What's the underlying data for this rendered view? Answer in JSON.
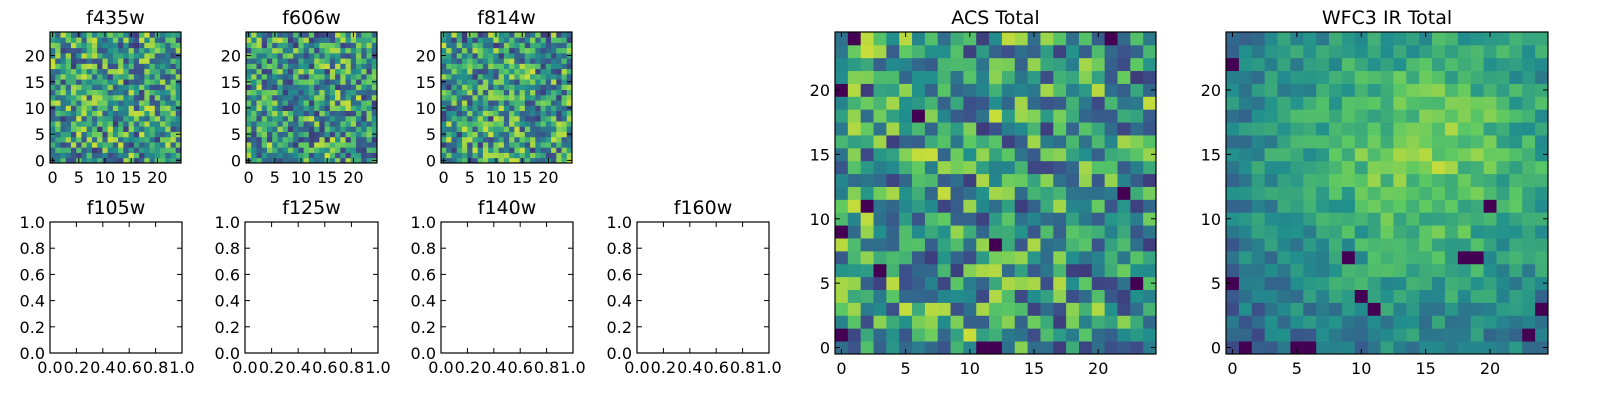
{
  "figure": {
    "colormap": "viridis",
    "colors": [
      "#440154",
      "#3b528b",
      "#21908d",
      "#5dc963",
      "#fde725"
    ],
    "axis_color": "#000000"
  },
  "chart_data": [
    {
      "type": "heatmap",
      "title": "f435w",
      "rows": 25,
      "cols": 25,
      "xlim": [
        -0.5,
        24.5
      ],
      "ylim": [
        -0.5,
        24.5
      ],
      "xticks": [
        0,
        5,
        10,
        15,
        20
      ],
      "yticks": [
        0,
        5,
        10,
        15,
        20
      ],
      "values_note": "random per-pixel noise",
      "seed": 11,
      "mode": "noise"
    },
    {
      "type": "heatmap",
      "title": "f606w",
      "rows": 25,
      "cols": 25,
      "xlim": [
        -0.5,
        24.5
      ],
      "ylim": [
        -0.5,
        24.5
      ],
      "xticks": [
        0,
        5,
        10,
        15,
        20
      ],
      "yticks": [
        0,
        5,
        10,
        15,
        20
      ],
      "seed": 23,
      "mode": "noise"
    },
    {
      "type": "heatmap",
      "title": "f814w",
      "rows": 25,
      "cols": 25,
      "xlim": [
        -0.5,
        24.5
      ],
      "ylim": [
        -0.5,
        24.5
      ],
      "xticks": [
        0,
        5,
        10,
        15,
        20
      ],
      "yticks": [
        0,
        5,
        10,
        15,
        20
      ],
      "seed": 37,
      "mode": "noise"
    },
    {
      "type": "scatter",
      "title": "f105w",
      "xlim": [
        0.0,
        1.0
      ],
      "ylim": [
        0.0,
        1.0
      ],
      "xticks": [
        "0.0",
        "0.2",
        "0.4",
        "0.6",
        "0.8",
        "1.0"
      ],
      "yticks": [
        "0.0",
        "0.2",
        "0.4",
        "0.6",
        "0.8",
        "1.0"
      ],
      "values": []
    },
    {
      "type": "scatter",
      "title": "f125w",
      "xlim": [
        0.0,
        1.0
      ],
      "ylim": [
        0.0,
        1.0
      ],
      "xticks": [
        "0.0",
        "0.2",
        "0.4",
        "0.6",
        "0.8",
        "1.0"
      ],
      "yticks": [
        "0.0",
        "0.2",
        "0.4",
        "0.6",
        "0.8",
        "1.0"
      ],
      "values": []
    },
    {
      "type": "scatter",
      "title": "f140w",
      "xlim": [
        0.0,
        1.0
      ],
      "ylim": [
        0.0,
        1.0
      ],
      "xticks": [
        "0.0",
        "0.2",
        "0.4",
        "0.6",
        "0.8",
        "1.0"
      ],
      "yticks": [
        "0.0",
        "0.2",
        "0.4",
        "0.6",
        "0.8",
        "1.0"
      ],
      "values": []
    },
    {
      "type": "scatter",
      "title": "f160w",
      "xlim": [
        0.0,
        1.0
      ],
      "ylim": [
        0.0,
        1.0
      ],
      "xticks": [
        "0.0",
        "0.2",
        "0.4",
        "0.6",
        "0.8",
        "1.0"
      ],
      "yticks": [
        "0.0",
        "0.2",
        "0.4",
        "0.6",
        "0.8",
        "1.0"
      ],
      "values": []
    },
    {
      "type": "heatmap",
      "title": "ACS Total",
      "rows": 25,
      "cols": 25,
      "xlim": [
        -0.5,
        24.5
      ],
      "ylim": [
        -0.5,
        24.5
      ],
      "xticks": [
        0,
        5,
        10,
        15,
        20
      ],
      "yticks": [
        0,
        5,
        10,
        15,
        20
      ],
      "seed": 53,
      "mode": "noise",
      "dark_pixels": [
        [
          11,
          0
        ],
        [
          12,
          0
        ],
        [
          0,
          1
        ],
        [
          23,
          5
        ],
        [
          3,
          6
        ],
        [
          12,
          8
        ],
        [
          0,
          9
        ],
        [
          2,
          11
        ],
        [
          22,
          12
        ],
        [
          0,
          20
        ],
        [
          6,
          18
        ],
        [
          21,
          24
        ],
        [
          1,
          24
        ]
      ]
    },
    {
      "type": "heatmap",
      "title": "WFC3 IR Total",
      "rows": 25,
      "cols": 25,
      "xlim": [
        -0.5,
        24.5
      ],
      "ylim": [
        -0.5,
        24.5
      ],
      "xticks": [
        0,
        5,
        10,
        15,
        20
      ],
      "yticks": [
        0,
        5,
        10,
        15,
        20
      ],
      "seed": 71,
      "mode": "smooth",
      "peak": [
        15,
        15
      ],
      "dark_pixels": [
        [
          1,
          0
        ],
        [
          5,
          0
        ],
        [
          6,
          0
        ],
        [
          10,
          4
        ],
        [
          11,
          3
        ],
        [
          18,
          7
        ],
        [
          19,
          7
        ],
        [
          9,
          7
        ],
        [
          20,
          11
        ],
        [
          0,
          22
        ],
        [
          0,
          5
        ],
        [
          24,
          3
        ],
        [
          23,
          1
        ]
      ]
    }
  ]
}
